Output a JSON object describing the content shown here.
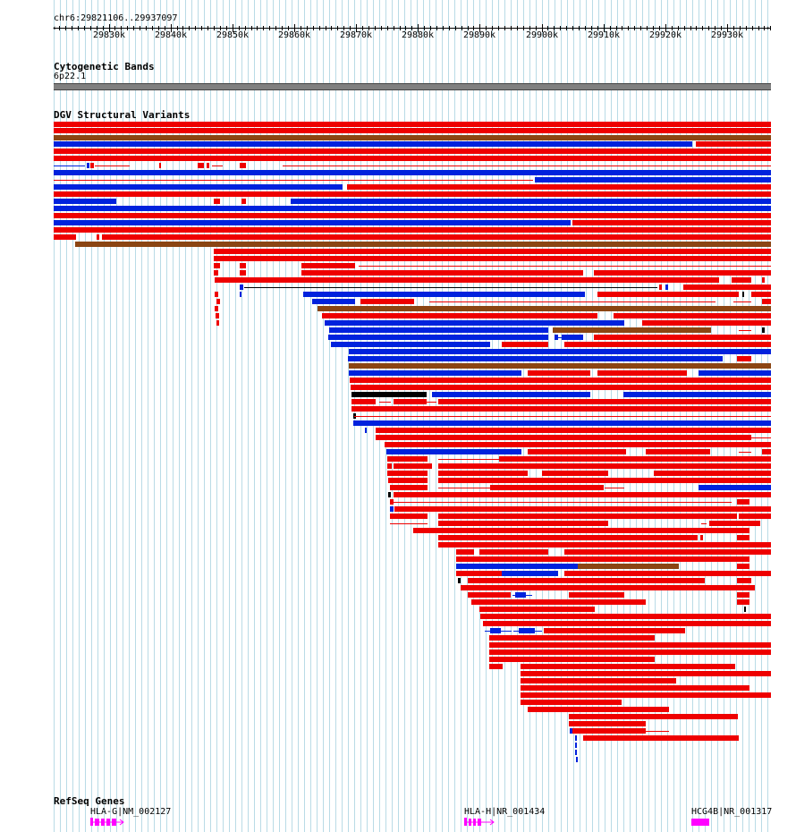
{
  "browser": {
    "region": "chr6:29821106..29937097",
    "ruler_ticks": [
      "29830k",
      "29840k",
      "29850k",
      "29860k",
      "29870k",
      "29880k",
      "29890k",
      "29900k",
      "29910k",
      "29920k",
      "29930k"
    ]
  },
  "tracks": {
    "cytoband": {
      "title": "Cytogenetic Bands",
      "band_label": "6p22.1",
      "band_color": "#808080"
    },
    "dgv": {
      "title": "DGV Structural Variants",
      "colors": {
        "loss": "#ee0000",
        "gain": "#0022dd",
        "complex": "#8b4513",
        "other": "#000000"
      }
    },
    "refseq": {
      "title": "RefSeq Genes",
      "gene_color": "#ff00ff",
      "genes": [
        {
          "label": "HLA-G|NM_002127"
        },
        {
          "label": "HLA-H|NR_001434"
        },
        {
          "label": "HCG4B|NR_001317"
        }
      ]
    }
  }
}
